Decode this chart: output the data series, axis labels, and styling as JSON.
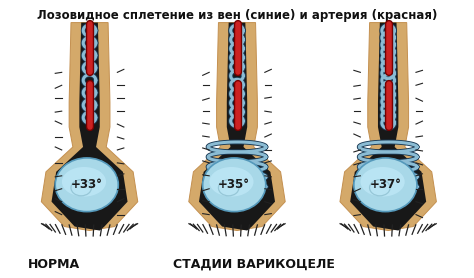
{
  "title": "Лозовидное сплетение из вен (синие) и артерия (красная)",
  "label_left": "НОРМА",
  "label_center": "СТАДИИ ВАРИКОЦЕЛЕ",
  "temp_left": "+33°",
  "temp_center": "+35°",
  "temp_right": "+37°",
  "bg_color": "#ffffff",
  "title_fontsize": 8.5,
  "label_fontsize": 8,
  "temp_fontsize": 8,
  "fig_width": 4.74,
  "fig_height": 2.78,
  "dpi": 100,
  "skin_color": "#D4A96A",
  "skin_dark": "#C49050",
  "vein_color": "#8BBCD4",
  "vein_dark": "#4488AA",
  "artery_color": "#CC2222",
  "testis_color": "#A8D8E8",
  "dark_color": "#111111"
}
